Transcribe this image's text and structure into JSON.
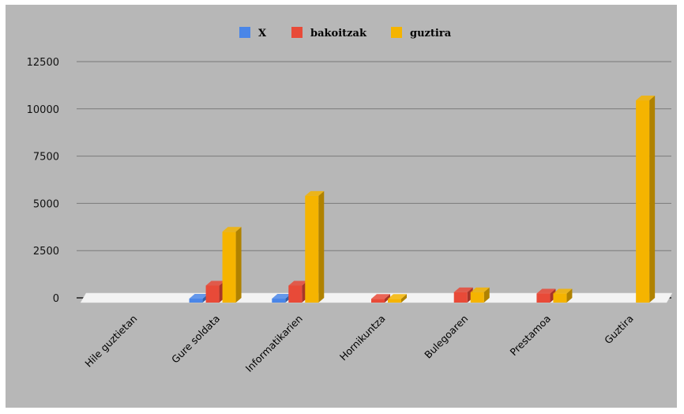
{
  "chart_data": {
    "type": "bar",
    "style": "3d-clustered-column",
    "title": "",
    "xlabel": "",
    "ylabel": "",
    "ylim": [
      0,
      12500
    ],
    "yticks": [
      0,
      2500,
      5000,
      7500,
      10000,
      12500
    ],
    "ytick_labels": [
      "0",
      "2500",
      "5000",
      "7500",
      "10000",
      "12500"
    ],
    "grid": true,
    "legend_position": "top",
    "categories": [
      "Hile guztietan",
      "Gure soldata",
      "Informatikarien",
      "Hornikuntza",
      "Bulegoaren",
      "Prestamoa",
      "Guztira"
    ],
    "series": [
      {
        "name": "X",
        "color": "#4a86e8",
        "values": [
          0,
          -100,
          -100,
          0,
          0,
          0,
          0
        ]
      },
      {
        "name": "bakoitzak",
        "color": "#e84a38",
        "values": [
          0,
          900,
          900,
          200,
          550,
          480,
          0
        ]
      },
      {
        "name": "guztira",
        "color": "#f5b400",
        "values": [
          0,
          3750,
          5650,
          200,
          550,
          480,
          10700
        ]
      }
    ],
    "background": "#b7b7b7"
  }
}
